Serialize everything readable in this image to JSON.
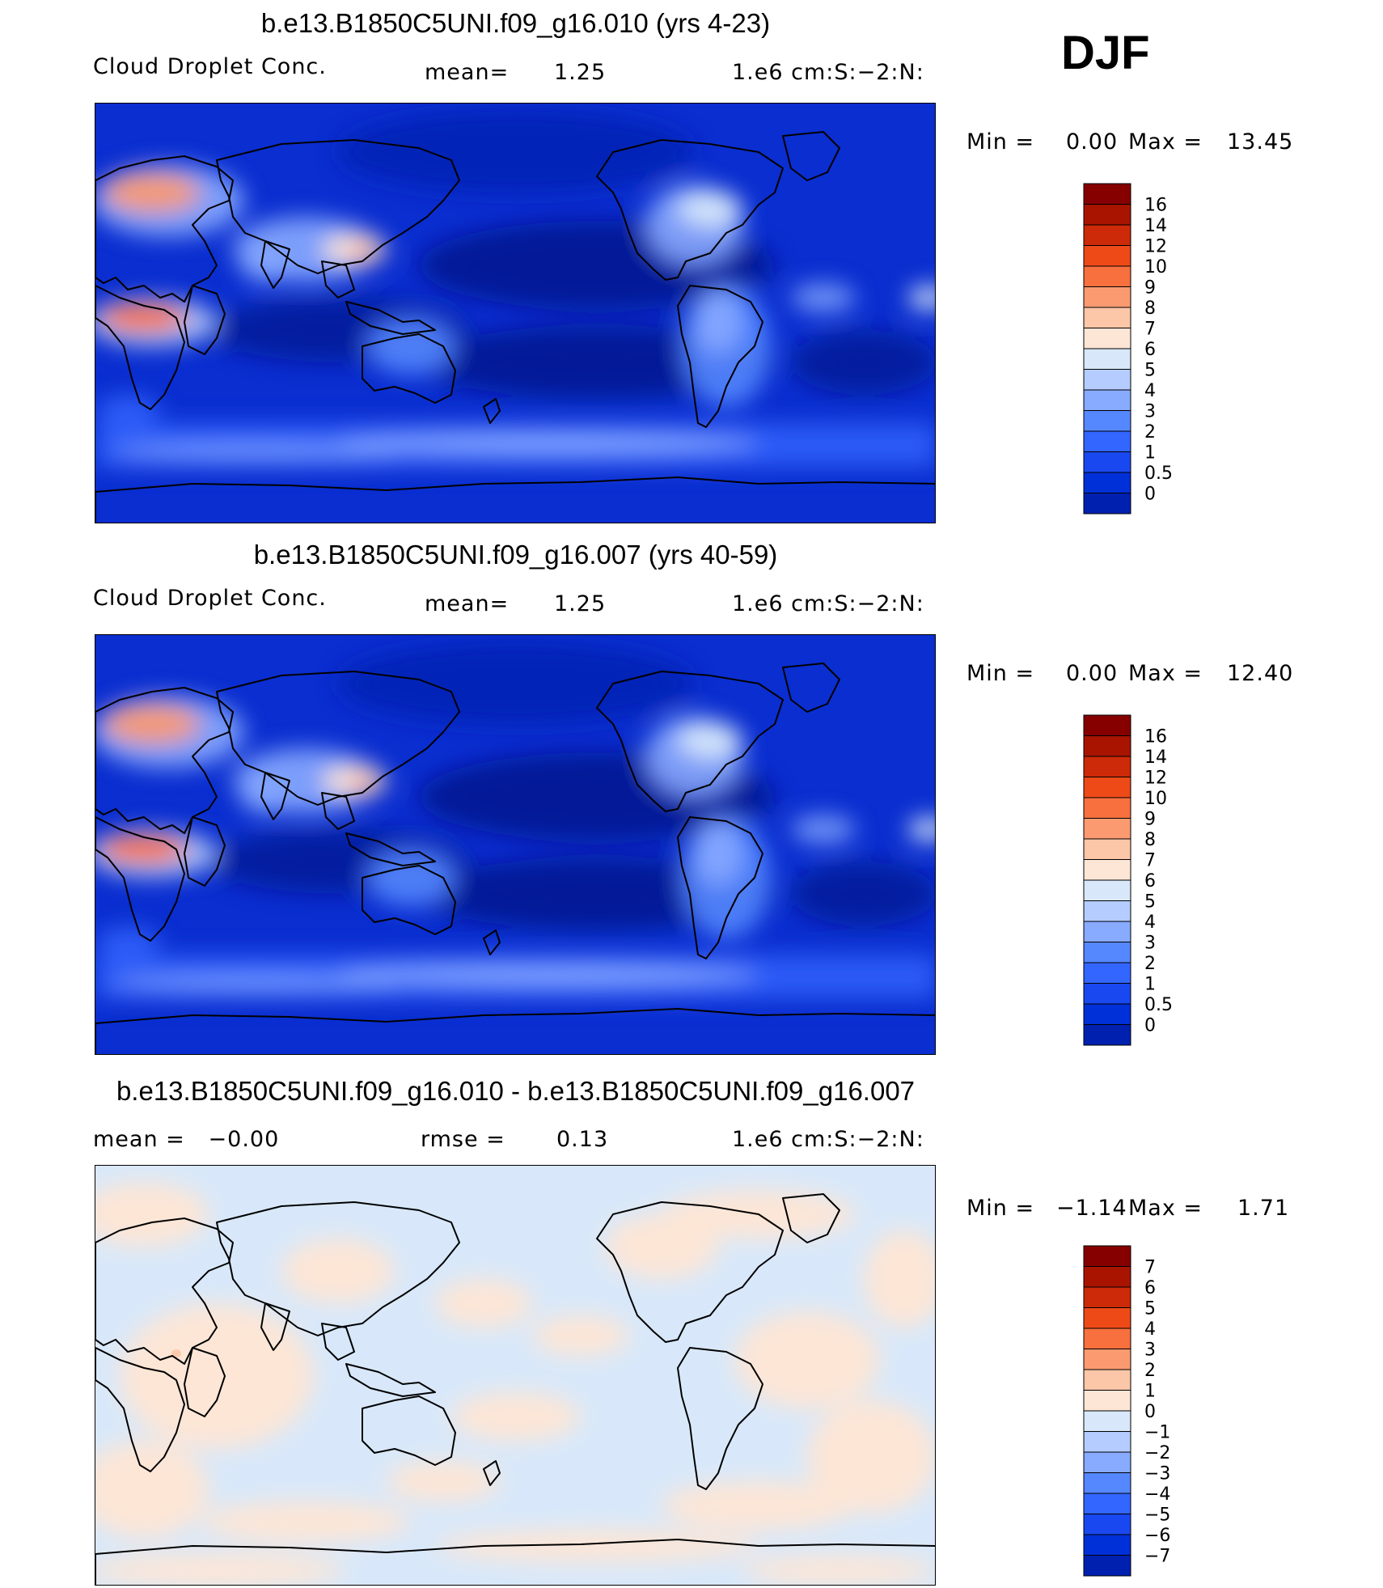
{
  "season": "DJF",
  "panels": [
    {
      "title": "b.e13.B1850C5UNI.f09_g16.010 (yrs 4-23)",
      "left_label": "Cloud Droplet Conc.",
      "mid_label": "mean=",
      "mid_value": "1.25",
      "units": "1.e6 cm:S:−2:N:",
      "min_label": "Min =",
      "min_value": "0.00",
      "max_label": "Max =",
      "max_value": "13.45",
      "colorbar_labels": [
        "16",
        "14",
        "12",
        "10",
        "9",
        "8",
        "7",
        "6",
        "5",
        "4",
        "3",
        "2",
        "1",
        "0.5",
        "0"
      ],
      "map_style": "field"
    },
    {
      "title": "b.e13.B1850C5UNI.f09_g16.007 (yrs 40-59)",
      "left_label": "Cloud Droplet Conc.",
      "mid_label": "mean=",
      "mid_value": "1.25",
      "units": "1.e6 cm:S:−2:N:",
      "min_label": "Min =",
      "min_value": "0.00",
      "max_label": "Max =",
      "max_value": "12.40",
      "colorbar_labels": [
        "16",
        "14",
        "12",
        "10",
        "9",
        "8",
        "7",
        "6",
        "5",
        "4",
        "3",
        "2",
        "1",
        "0.5",
        "0"
      ],
      "map_style": "field"
    },
    {
      "title": "b.e13.B1850C5UNI.f09_g16.010 - b.e13.B1850C5UNI.f09_g16.007",
      "left_label": "mean =   −0.00",
      "mid_label": "rmse =",
      "mid_value": "0.13",
      "units": "1.e6 cm:S:−2:N:",
      "min_label": "Min =",
      "min_value": "−1.14",
      "max_label": "Max =",
      "max_value": "1.71",
      "colorbar_labels": [
        "7",
        "6",
        "5",
        "4",
        "3",
        "2",
        "1",
        "0",
        "−1",
        "−2",
        "−3",
        "−4",
        "−5",
        "−6",
        "−7"
      ],
      "map_style": "diff"
    }
  ],
  "colors": {
    "scale": [
      "#000b80",
      "#0020b0",
      "#0030d8",
      "#1a48f0",
      "#3366ff",
      "#5588ff",
      "#88aaff",
      "#b4ccff",
      "#d8e8fa",
      "#fde6d6",
      "#fcc6a8",
      "#fb9a70",
      "#f8703e",
      "#ee4a18",
      "#cc2a08",
      "#a81400",
      "#860000"
    ],
    "ocean_base": "#0a2ed0",
    "diff_pos": "#fde6d6",
    "diff_neg": "#d8e8fa"
  }
}
